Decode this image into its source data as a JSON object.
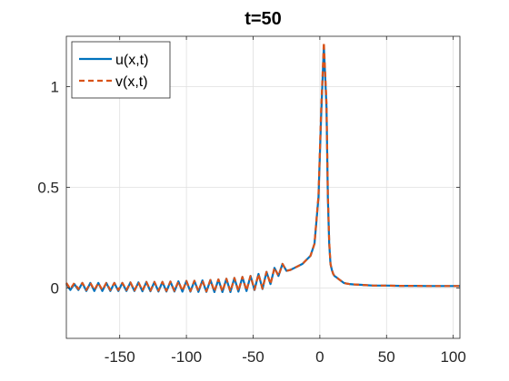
{
  "chart_data": {
    "type": "line",
    "title": "t=50",
    "xlabel": "",
    "ylabel": "",
    "xlim": [
      -190,
      105
    ],
    "ylim": [
      -0.25,
      1.25
    ],
    "xticks": [
      -150,
      -100,
      -50,
      0,
      50,
      100
    ],
    "xtick_labels": [
      "-150",
      "-100",
      "-50",
      "0",
      "50",
      "100"
    ],
    "yticks": [
      0,
      0.5,
      1
    ],
    "ytick_labels": [
      "0",
      "0.5",
      "1"
    ],
    "grid": true,
    "legend_position": "top-left",
    "series": [
      {
        "name": "u(x,t)",
        "style": "solid",
        "color": "#0072BD",
        "x": [
          -190,
          -187,
          -184,
          -181,
          -178,
          -175,
          -172,
          -169,
          -166,
          -163,
          -160,
          -157,
          -154,
          -151,
          -148,
          -145,
          -142,
          -139,
          -136,
          -133,
          -130,
          -127,
          -124,
          -121,
          -118,
          -115,
          -112,
          -109,
          -106,
          -103,
          -100,
          -97,
          -94,
          -91,
          -88,
          -85,
          -82,
          -79,
          -76,
          -73,
          -70,
          -67,
          -64,
          -61,
          -58,
          -55,
          -52,
          -49,
          -46,
          -43,
          -40,
          -37,
          -34,
          -31,
          -28,
          -25,
          -22,
          -19,
          -16,
          -13,
          -10,
          -7,
          -4,
          -1,
          1,
          3,
          5,
          6,
          7,
          8,
          9,
          10,
          11,
          12,
          13,
          14,
          15,
          16,
          17,
          18,
          20,
          22,
          25,
          30,
          35,
          40,
          50,
          60,
          70,
          80,
          90,
          100,
          105
        ],
        "y": [
          0.02,
          -0.01,
          0.02,
          -0.01,
          0.025,
          -0.015,
          0.025,
          -0.015,
          0.025,
          -0.015,
          0.025,
          -0.015,
          0.025,
          -0.015,
          0.025,
          -0.015,
          0.028,
          -0.015,
          0.028,
          -0.016,
          0.03,
          -0.016,
          0.03,
          -0.017,
          0.03,
          -0.017,
          0.032,
          -0.017,
          0.033,
          -0.018,
          0.035,
          -0.018,
          0.036,
          -0.019,
          0.038,
          -0.019,
          0.04,
          -0.02,
          0.043,
          -0.02,
          0.046,
          -0.02,
          0.05,
          -0.018,
          0.055,
          -0.015,
          0.06,
          -0.01,
          0.07,
          -0.005,
          0.08,
          0.02,
          0.1,
          0.06,
          0.12,
          0.085,
          0.09,
          0.1,
          0.11,
          0.12,
          0.14,
          0.16,
          0.22,
          0.45,
          0.85,
          1.2,
          0.9,
          0.45,
          0.22,
          0.12,
          0.09,
          0.07,
          0.06,
          0.055,
          0.05,
          0.045,
          0.04,
          0.035,
          0.03,
          0.025,
          0.022,
          0.02,
          0.018,
          0.016,
          0.014,
          0.012,
          0.012,
          0.011,
          0.011,
          0.01,
          0.01,
          0.01,
          0.01
        ]
      },
      {
        "name": "v(x,t)",
        "style": "dashed",
        "color": "#D95319",
        "x": [
          -190,
          -187,
          -184,
          -181,
          -178,
          -175,
          -172,
          -169,
          -166,
          -163,
          -160,
          -157,
          -154,
          -151,
          -148,
          -145,
          -142,
          -139,
          -136,
          -133,
          -130,
          -127,
          -124,
          -121,
          -118,
          -115,
          -112,
          -109,
          -106,
          -103,
          -100,
          -97,
          -94,
          -91,
          -88,
          -85,
          -82,
          -79,
          -76,
          -73,
          -70,
          -67,
          -64,
          -61,
          -58,
          -55,
          -52,
          -49,
          -46,
          -43,
          -40,
          -37,
          -34,
          -31,
          -28,
          -25,
          -22,
          -19,
          -16,
          -13,
          -10,
          -7,
          -4,
          -1,
          1,
          3,
          5,
          6,
          7,
          8,
          9,
          10,
          11,
          12,
          13,
          14,
          15,
          16,
          17,
          18,
          20,
          22,
          25,
          30,
          35,
          40,
          50,
          60,
          70,
          80,
          90,
          100,
          105
        ],
        "y": [
          0.025,
          -0.005,
          0.025,
          -0.005,
          0.025,
          -0.01,
          0.025,
          -0.01,
          0.025,
          -0.01,
          0.025,
          -0.01,
          0.025,
          -0.01,
          0.025,
          -0.01,
          0.028,
          -0.012,
          0.028,
          -0.012,
          0.03,
          -0.013,
          0.03,
          -0.013,
          0.03,
          -0.014,
          0.032,
          -0.014,
          0.033,
          -0.015,
          0.035,
          -0.015,
          0.036,
          -0.016,
          0.038,
          -0.016,
          0.04,
          -0.017,
          0.043,
          -0.017,
          0.046,
          -0.017,
          0.05,
          -0.015,
          0.055,
          -0.012,
          0.06,
          -0.008,
          0.07,
          -0.003,
          0.08,
          0.02,
          0.1,
          0.06,
          0.12,
          0.085,
          0.09,
          0.1,
          0.11,
          0.12,
          0.14,
          0.16,
          0.22,
          0.46,
          0.88,
          1.22,
          0.92,
          0.47,
          0.23,
          0.12,
          0.09,
          0.07,
          0.06,
          0.055,
          0.05,
          0.045,
          0.04,
          0.035,
          0.03,
          0.025,
          0.022,
          0.02,
          0.018,
          0.016,
          0.014,
          0.012,
          0.012,
          0.011,
          0.011,
          0.01,
          0.01,
          0.01,
          0.01
        ]
      }
    ]
  }
}
